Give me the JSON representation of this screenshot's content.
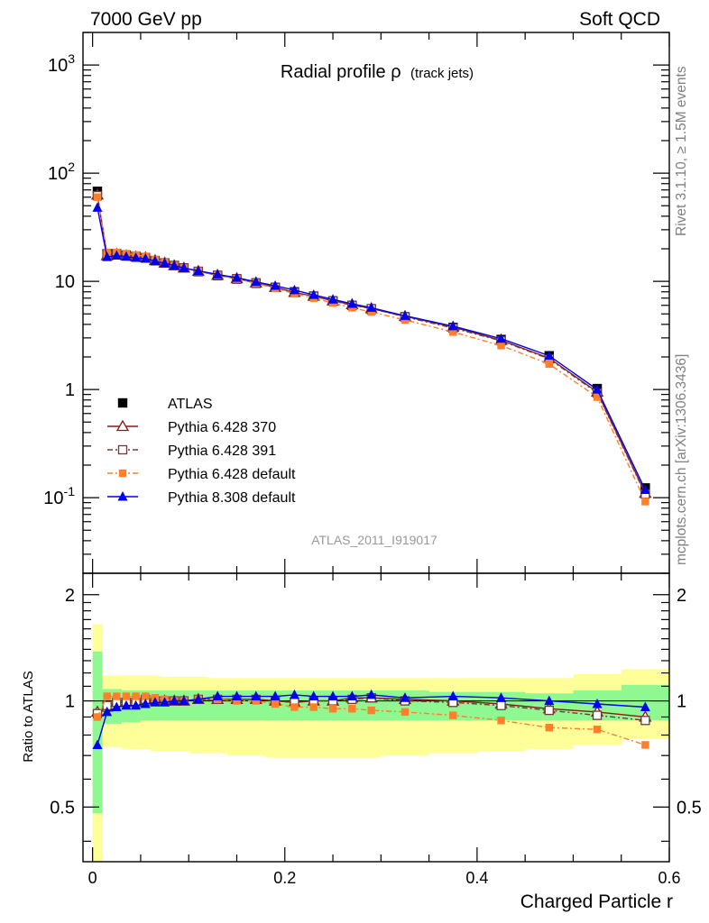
{
  "header": {
    "left": "7000 GeV pp",
    "right": "Soft QCD"
  },
  "side_labels": {
    "rivet": "Rivet 3.1.10, ≥ 1.5M events",
    "mcplots": "mcplots.cern.ch [arXiv:1306.3436]"
  },
  "chart_data": [
    {
      "type": "line",
      "title": "Radial profile ρ",
      "title_suffix": "(track jets)",
      "analysis_id": "ATLAS_2011_I919017",
      "xlabel": "",
      "ylabel": "",
      "xlim": [
        -0.01,
        0.6
      ],
      "ylim": [
        0.02,
        2000
      ],
      "yscale": "log",
      "y_ticks": [
        "10^-1",
        "1",
        "10",
        "10^2",
        "10^3"
      ],
      "legend_position": "left",
      "x": [
        0.005,
        0.015,
        0.025,
        0.035,
        0.045,
        0.055,
        0.065,
        0.075,
        0.085,
        0.095,
        0.11,
        0.13,
        0.15,
        0.17,
        0.19,
        0.21,
        0.23,
        0.25,
        0.27,
        0.29,
        0.325,
        0.375,
        0.425,
        0.475,
        0.525,
        0.575
      ],
      "series": [
        {
          "name": "ATLAS",
          "color": "#000000",
          "marker": "square",
          "dash": "none",
          "values": [
            68,
            18,
            18,
            17.5,
            17,
            16.5,
            15.5,
            14.8,
            14,
            13.3,
            12.3,
            11.3,
            10.5,
            9.6,
            8.8,
            8.0,
            7.3,
            6.6,
            6.0,
            5.5,
            4.7,
            3.75,
            2.9,
            2.05,
            1.02,
            0.123
          ]
        },
        {
          "name": "Pythia 6.428 370",
          "color": "#8b1a1a",
          "marker": "triangle-open",
          "dash": "none",
          "values": [
            63,
            17.3,
            17.8,
            17.3,
            16.9,
            16.6,
            15.6,
            14.8,
            14.0,
            13.3,
            12.4,
            11.4,
            10.6,
            9.7,
            8.8,
            7.9,
            7.3,
            6.6,
            6.1,
            5.6,
            4.75,
            3.78,
            2.85,
            1.95,
            0.95,
            0.11
          ]
        },
        {
          "name": "Pythia 6.428 391",
          "color": "#6b3b3b",
          "marker": "square-open",
          "dash": "6 3 2 3",
          "values": [
            62,
            17.3,
            17.8,
            17.3,
            16.9,
            16.6,
            15.6,
            14.8,
            14.0,
            13.3,
            12.4,
            11.4,
            10.6,
            9.7,
            8.8,
            7.9,
            7.3,
            6.6,
            6.0,
            5.6,
            4.7,
            3.7,
            2.82,
            1.92,
            0.93,
            0.108
          ]
        },
        {
          "name": "Pythia 6.428 default",
          "color": "#ff7f2a",
          "marker": "square-filled",
          "dash": "6 3 2 3",
          "values": [
            60,
            18.5,
            18.5,
            18.0,
            17.5,
            17.0,
            15.8,
            14.9,
            14.0,
            13.3,
            12.4,
            11.4,
            10.5,
            9.6,
            8.6,
            7.7,
            7.0,
            6.3,
            5.7,
            5.2,
            4.4,
            3.4,
            2.55,
            1.72,
            0.85,
            0.092
          ]
        },
        {
          "name": "Pythia 8.308 default",
          "color": "#0000ee",
          "marker": "triangle-filled",
          "dash": "none",
          "values": [
            48,
            16.8,
            17.3,
            16.9,
            16.5,
            16.2,
            15.4,
            14.7,
            14.0,
            13.3,
            12.5,
            11.6,
            10.8,
            9.9,
            9.1,
            8.3,
            7.5,
            6.8,
            6.2,
            5.7,
            4.8,
            3.85,
            2.95,
            2.05,
            1.0,
            0.118
          ]
        }
      ]
    },
    {
      "type": "line",
      "title": "",
      "xlabel": "Charged Particle r",
      "ylabel": "Ratio to ATLAS",
      "xlim": [
        -0.01,
        0.6
      ],
      "ylim": [
        0.35,
        2.3
      ],
      "yscale": "log",
      "x_ticks": [
        "0",
        "0.2",
        "0.4",
        "0.6"
      ],
      "y_ticks": [
        "0.5",
        "1",
        "2"
      ],
      "bands": [
        {
          "name": "stat",
          "color": "#90f890",
          "edges": [
            0.0,
            0.01,
            0.02,
            0.03,
            0.04,
            0.05,
            0.06,
            0.07,
            0.08,
            0.09,
            0.1,
            0.12,
            0.14,
            0.16,
            0.18,
            0.2,
            0.22,
            0.24,
            0.26,
            0.28,
            0.3,
            0.35,
            0.4,
            0.45,
            0.5,
            0.55,
            0.6
          ],
          "low": [
            0.48,
            0.86,
            0.86,
            0.87,
            0.87,
            0.88,
            0.88,
            0.88,
            0.88,
            0.88,
            0.88,
            0.88,
            0.88,
            0.88,
            0.88,
            0.88,
            0.88,
            0.88,
            0.88,
            0.88,
            0.88,
            0.88,
            0.88,
            0.88,
            0.88,
            0.88
          ],
          "high": [
            1.38,
            1.08,
            1.08,
            1.07,
            1.07,
            1.07,
            1.07,
            1.07,
            1.07,
            1.07,
            1.07,
            1.07,
            1.07,
            1.07,
            1.07,
            1.07,
            1.07,
            1.07,
            1.07,
            1.07,
            1.07,
            1.06,
            1.06,
            1.05,
            1.07,
            1.11
          ]
        },
        {
          "name": "total",
          "color": "#ffff99",
          "edges": [
            0.0,
            0.01,
            0.02,
            0.03,
            0.04,
            0.05,
            0.06,
            0.07,
            0.08,
            0.09,
            0.1,
            0.12,
            0.14,
            0.16,
            0.18,
            0.2,
            0.22,
            0.24,
            0.26,
            0.28,
            0.3,
            0.35,
            0.4,
            0.45,
            0.5,
            0.55,
            0.6
          ],
          "low": [
            0.35,
            0.74,
            0.74,
            0.73,
            0.73,
            0.73,
            0.72,
            0.72,
            0.72,
            0.72,
            0.71,
            0.71,
            0.7,
            0.7,
            0.69,
            0.69,
            0.69,
            0.69,
            0.69,
            0.69,
            0.7,
            0.71,
            0.72,
            0.73,
            0.75,
            0.78
          ],
          "high": [
            1.65,
            1.18,
            1.18,
            1.18,
            1.18,
            1.18,
            1.18,
            1.17,
            1.17,
            1.17,
            1.17,
            1.16,
            1.16,
            1.16,
            1.16,
            1.16,
            1.16,
            1.16,
            1.16,
            1.16,
            1.16,
            1.16,
            1.16,
            1.16,
            1.19,
            1.23
          ]
        }
      ],
      "series": [
        {
          "name": "Pythia 6.428 370",
          "color": "#8b1a1a",
          "marker": "triangle-open",
          "dash": "none",
          "values": [
            0.93,
            0.96,
            0.99,
            0.99,
            0.99,
            1.01,
            1.0,
            1.0,
            1.0,
            1.0,
            1.01,
            1.01,
            1.01,
            1.01,
            1.0,
            0.99,
            1.0,
            1.0,
            1.02,
            1.02,
            1.01,
            1.0,
            0.98,
            0.95,
            0.93,
            0.9
          ]
        },
        {
          "name": "Pythia 6.428 391",
          "color": "#6b3b3b",
          "marker": "square-open",
          "dash": "6 3 2 3",
          "values": [
            0.92,
            0.97,
            0.99,
            0.99,
            0.99,
            1.01,
            1.0,
            1.0,
            1.0,
            1.0,
            1.01,
            1.01,
            1.01,
            1.01,
            1.0,
            0.99,
            1.0,
            1.0,
            1.01,
            1.02,
            1.0,
            0.99,
            0.97,
            0.94,
            0.91,
            0.88
          ]
        },
        {
          "name": "Pythia 6.428 default",
          "color": "#ff7f2a",
          "marker": "square-filled",
          "dash": "6 3 2 3",
          "values": [
            0.9,
            1.03,
            1.03,
            1.03,
            1.03,
            1.03,
            1.02,
            1.01,
            1.0,
            1.0,
            1.01,
            1.01,
            1.0,
            1.0,
            0.98,
            0.96,
            0.96,
            0.95,
            0.95,
            0.94,
            0.93,
            0.91,
            0.88,
            0.84,
            0.83,
            0.75
          ]
        },
        {
          "name": "Pythia 8.308 default",
          "color": "#0000ee",
          "marker": "triangle-filled",
          "dash": "none",
          "values": [
            0.75,
            0.93,
            0.96,
            0.97,
            0.97,
            0.98,
            0.99,
            0.99,
            1.0,
            1.0,
            1.01,
            1.03,
            1.03,
            1.03,
            1.03,
            1.04,
            1.03,
            1.03,
            1.03,
            1.04,
            1.02,
            1.03,
            1.02,
            1.0,
            0.98,
            0.96
          ]
        }
      ]
    }
  ]
}
